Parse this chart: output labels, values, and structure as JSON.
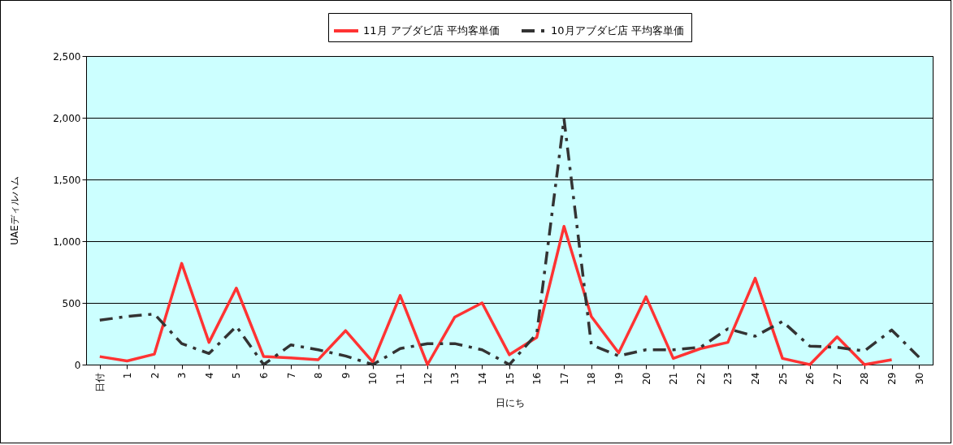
{
  "chart_data": {
    "type": "line",
    "xlabel": "日にち",
    "ylabel": "UAEディルハム",
    "categories": [
      "日付",
      "1",
      "2",
      "3",
      "4",
      "5",
      "6",
      "7",
      "8",
      "9",
      "10",
      "11",
      "12",
      "13",
      "14",
      "15",
      "16",
      "17",
      "18",
      "19",
      "20",
      "21",
      "22",
      "23",
      "24",
      "25",
      "26",
      "27",
      "28",
      "29",
      "30"
    ],
    "series": [
      {
        "name": "11月  アブダビ店  平均客単価",
        "color": "#ff3333",
        "line_style": "solid",
        "values": [
          65,
          30,
          85,
          820,
          180,
          620,
          65,
          55,
          40,
          275,
          20,
          560,
          0,
          385,
          500,
          80,
          220,
          1120,
          390,
          95,
          550,
          50,
          130,
          180,
          700,
          50,
          0,
          225,
          0,
          40,
          null
        ]
      },
      {
        "name": "10月アブダビ店  平均客単価",
        "color": "#333333",
        "line_style": "dashdot",
        "values": [
          360,
          390,
          410,
          170,
          90,
          310,
          0,
          160,
          120,
          70,
          0,
          130,
          170,
          170,
          120,
          0,
          250,
          1990,
          160,
          70,
          120,
          120,
          140,
          290,
          230,
          350,
          150,
          140,
          110,
          280,
          60
        ]
      }
    ],
    "ylim": [
      0,
      2500
    ],
    "yticks": [
      0,
      500,
      {
        "value": 1000,
        "label": "1,000"
      },
      {
        "value": 1500,
        "label": "1,500"
      },
      {
        "value": 2000,
        "label": "2,000"
      },
      {
        "value": 2500,
        "label": "2,500"
      }
    ],
    "grid": "y",
    "legend": "top",
    "marker": "none"
  }
}
